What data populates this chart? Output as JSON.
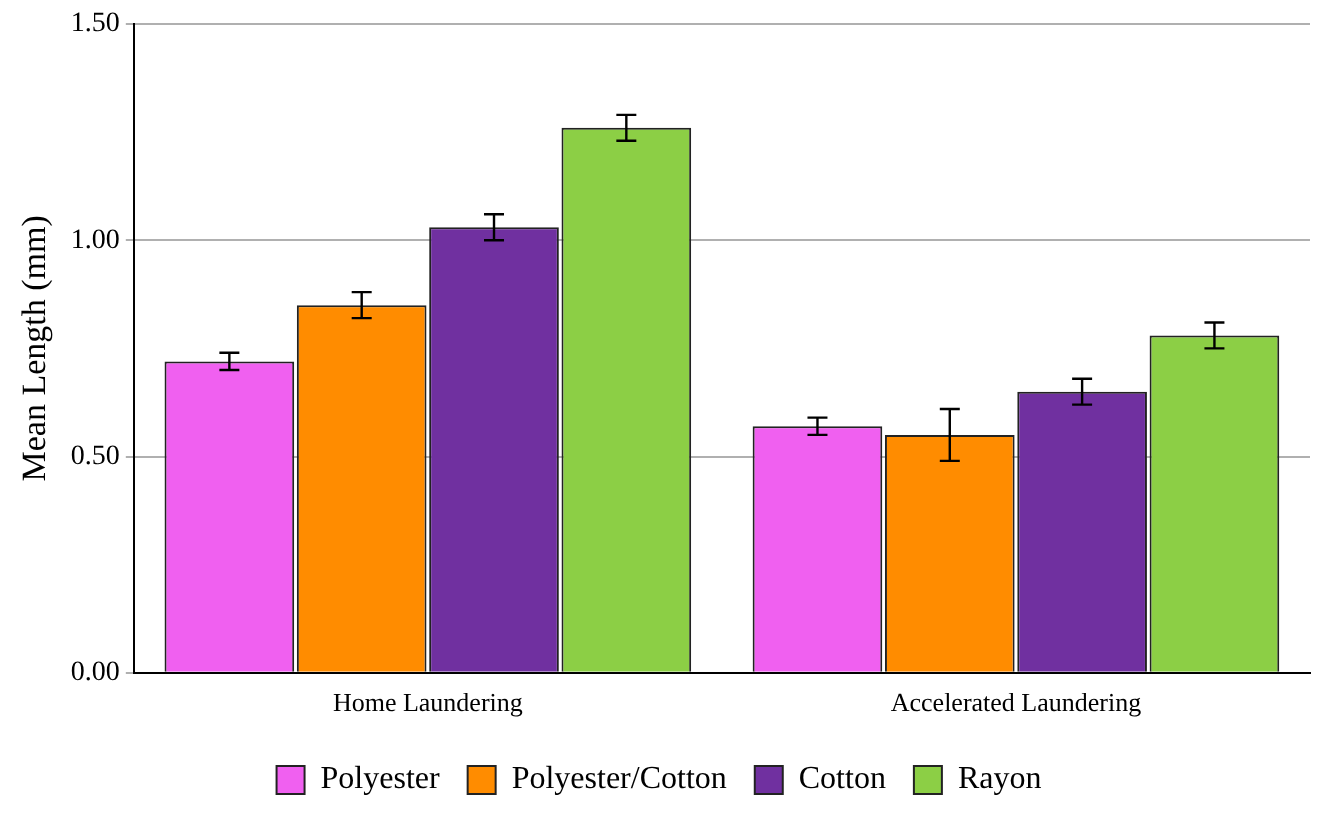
{
  "chart_data": {
    "type": "bar",
    "ylabel": "Mean Length (mm)",
    "categories": [
      "Home Laundering",
      "Accelerated Laundering"
    ],
    "series": [
      {
        "name": "Polyester",
        "color": "#f060f0",
        "values": [
          0.72,
          0.57
        ],
        "errors": [
          0.02,
          0.02
        ]
      },
      {
        "name": "Polyester/Cotton",
        "color": "#ff8c00",
        "values": [
          0.85,
          0.55
        ],
        "errors": [
          0.03,
          0.06
        ]
      },
      {
        "name": "Cotton",
        "color": "#7030a0",
        "values": [
          1.03,
          0.65
        ],
        "errors": [
          0.03,
          0.03
        ]
      },
      {
        "name": "Rayon",
        "color": "#8ccf45",
        "values": [
          1.26,
          0.78
        ],
        "errors": [
          0.03,
          0.03
        ]
      }
    ],
    "ylim": [
      0,
      1.5
    ],
    "yticks": [
      {
        "value": 0,
        "label": "0.00"
      },
      {
        "value": 0.5,
        "label": "0.50"
      },
      {
        "value": 1,
        "label": "1.00"
      },
      {
        "value": 1.5,
        "label": "1.50"
      }
    ],
    "grid": "y",
    "legend": "bottom"
  }
}
